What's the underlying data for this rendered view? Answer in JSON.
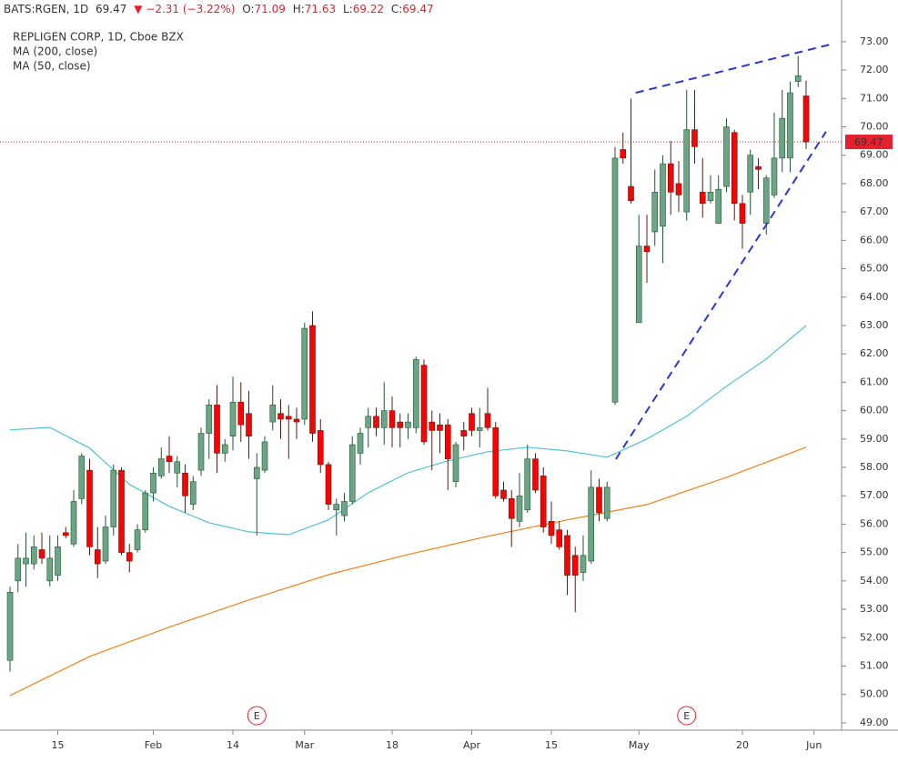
{
  "chart_data": {
    "type": "candlestick",
    "header": {
      "symbol": "BATS:RGEN, 1D",
      "last": "69.47",
      "change": "▼ −2.31 (−3.22%)",
      "ohlc": [
        {
          "label": "O:",
          "value": "71.09"
        },
        {
          "label": "H:",
          "value": "71.63"
        },
        {
          "label": "L:",
          "value": "69.22"
        },
        {
          "label": "C:",
          "value": "69.47"
        }
      ]
    },
    "title": "REPLIGEN CORP, 1D, Cboe BZX",
    "up_color": "#6ba583",
    "down_color": "#ff0000",
    "up_border": "#225437",
    "down_border": "#5b1a13",
    "open": [
      51.2,
      54.0,
      54.6,
      54.6,
      55.1,
      54.0,
      54.2,
      55.7,
      55.3,
      56.9,
      57.9,
      55.1,
      54.7,
      55.9,
      57.9,
      55.0,
      55.1,
      55.8,
      57.1,
      57.7,
      58.4,
      57.8,
      57.8,
      56.7,
      57.9,
      59.2,
      60.2,
      58.5,
      59.1,
      60.3,
      59.9,
      57.6,
      57.9,
      59.6,
      59.9,
      59.8,
      59.7,
      59.7,
      63.0,
      59.3,
      58.1,
      56.5,
      56.3,
      56.8,
      58.5,
      59.4,
      59.8,
      59.4,
      60.0,
      59.6,
      59.4,
      59.4,
      61.6,
      59.6,
      59.5,
      59.5,
      57.5,
      59.3,
      59.9,
      59.3,
      59.9,
      59.4,
      57.2,
      56.9,
      56.1,
      56.5,
      58.3,
      57.7,
      56.1,
      55.8,
      55.6,
      54.9,
      54.3,
      54.7,
      57.3,
      56.2,
      60.3,
      69.2,
      67.9,
      63.1,
      65.8,
      66.3,
      66.5,
      68.7,
      68.0,
      67.0,
      69.9,
      67.7,
      67.4,
      66.6,
      67.9,
      69.8,
      67.3,
      67.7,
      68.6,
      66.6,
      67.6,
      68.9,
      68.9,
      71.6,
      71.09
    ],
    "high": [
      53.8,
      55.3,
      55.7,
      55.6,
      55.7,
      55.6,
      55.6,
      55.9,
      57.2,
      58.5,
      58.3,
      55.9,
      56.3,
      58.1,
      58.0,
      55.3,
      56.0,
      57.2,
      58.0,
      58.7,
      59.1,
      58.4,
      58.1,
      57.7,
      59.4,
      60.4,
      60.9,
      59.0,
      61.2,
      61.0,
      60.7,
      58.5,
      59.1,
      60.9,
      60.4,
      60.2,
      60.1,
      63.1,
      63.5,
      59.7,
      58.2,
      56.9,
      57.1,
      59.1,
      59.4,
      60.1,
      60.1,
      61.0,
      60.5,
      59.9,
      59.9,
      61.9,
      61.8,
      60.0,
      59.9,
      59.7,
      58.9,
      59.6,
      60.1,
      60.1,
      60.8,
      59.6,
      57.5,
      57.2,
      57.8,
      58.8,
      58.5,
      58.0,
      56.8,
      56.1,
      55.8,
      55.2,
      55.6,
      57.9,
      57.6,
      57.5,
      69.3,
      69.8,
      71.0,
      66.9,
      66.9,
      68.5,
      69.0,
      69.5,
      68.8,
      71.3,
      71.3,
      68.9,
      68.3,
      68.3,
      70.3,
      69.9,
      67.6,
      69.2,
      68.9,
      68.3,
      70.5,
      71.3,
      71.6,
      72.5,
      71.63
    ],
    "low": [
      50.8,
      53.6,
      53.8,
      54.4,
      54.6,
      53.8,
      54.0,
      55.5,
      55.2,
      56.7,
      54.9,
      54.1,
      54.6,
      55.6,
      54.9,
      54.3,
      55.0,
      55.7,
      56.8,
      57.6,
      57.8,
      57.3,
      56.4,
      56.5,
      57.7,
      58.3,
      57.8,
      58.2,
      58.6,
      58.9,
      58.3,
      55.6,
      57.8,
      59.3,
      59.0,
      58.3,
      59.0,
      59.5,
      58.9,
      57.8,
      56.5,
      55.6,
      56.1,
      56.7,
      58.1,
      58.7,
      59.1,
      58.8,
      58.7,
      58.7,
      59.0,
      59.2,
      58.8,
      57.9,
      58.5,
      57.2,
      57.3,
      58.6,
      59.1,
      58.7,
      59.3,
      56.9,
      56.8,
      55.2,
      55.9,
      56.4,
      57.1,
      55.7,
      55.3,
      55.1,
      53.5,
      52.9,
      54.0,
      54.6,
      56.1,
      56.1,
      60.2,
      68.7,
      67.3,
      63.1,
      64.5,
      65.8,
      65.2,
      66.9,
      67.0,
      66.7,
      68.7,
      66.8,
      67.3,
      66.6,
      67.7,
      66.7,
      65.7,
      66.9,
      67.8,
      66.2,
      67.5,
      68.4,
      68.4,
      71.4,
      69.22
    ],
    "close": [
      53.6,
      54.8,
      54.8,
      55.2,
      54.8,
      54.8,
      55.2,
      55.6,
      56.8,
      58.4,
      55.2,
      54.6,
      55.9,
      57.9,
      55.0,
      54.7,
      55.8,
      57.1,
      57.8,
      58.3,
      58.2,
      58.2,
      57.0,
      57.5,
      59.2,
      60.2,
      58.5,
      58.8,
      60.3,
      59.5,
      59.1,
      58.0,
      58.9,
      60.2,
      59.7,
      59.7,
      59.6,
      62.9,
      59.2,
      58.1,
      56.7,
      56.7,
      56.8,
      58.8,
      59.2,
      59.8,
      59.4,
      60.0,
      59.4,
      59.4,
      59.6,
      61.8,
      58.9,
      59.3,
      59.3,
      58.3,
      58.8,
      59.1,
      59.3,
      59.4,
      59.4,
      57.0,
      56.9,
      56.2,
      57.0,
      58.3,
      57.2,
      55.9,
      55.6,
      55.2,
      54.2,
      54.2,
      54.9,
      57.3,
      56.4,
      57.3,
      68.9,
      68.9,
      67.4,
      65.8,
      65.6,
      67.7,
      68.7,
      67.7,
      67.6,
      69.9,
      69.3,
      67.3,
      67.7,
      67.8,
      70.0,
      67.3,
      66.6,
      69.0,
      68.5,
      68.2,
      68.9,
      70.3,
      71.2,
      71.8,
      69.47
    ],
    "series": [
      {
        "name": "MA (200, close)",
        "color": "#f57f17",
        "x": [
          0,
          10,
          20,
          30,
          40,
          50,
          60,
          70,
          80,
          90,
          100
        ],
        "values": [
          49.96,
          51.34,
          52.37,
          53.33,
          54.22,
          54.93,
          55.57,
          56.15,
          56.69,
          57.65,
          58.71
        ]
      },
      {
        "name": "MA (50, close)",
        "color": "#4fc3d9",
        "x": [
          0,
          5,
          10,
          15,
          20,
          25,
          30,
          35,
          40,
          45,
          50,
          55,
          60,
          65,
          70,
          75,
          80,
          85,
          90,
          95,
          100
        ],
        "values": [
          59.32,
          59.41,
          58.68,
          57.4,
          56.63,
          56.05,
          55.73,
          55.63,
          56.15,
          57.11,
          57.81,
          58.23,
          58.55,
          58.71,
          58.58,
          58.36,
          59.0,
          59.8,
          60.86,
          61.82,
          63.0
        ]
      }
    ],
    "trendlines": [
      {
        "color": "#2936d6",
        "x": [
          78.6,
          103
        ],
        "y": [
          71.2,
          72.9
        ]
      },
      {
        "color": "#2936d6",
        "x": [
          76.1,
          102.5
        ],
        "y": [
          58.29,
          69.83
        ]
      }
    ],
    "events": [
      {
        "x": 31,
        "label": "E"
      },
      {
        "x": 85,
        "label": "E"
      }
    ],
    "last_price": 69.47,
    "last_color": "#e5212d",
    "xlim": [
      -1.26,
      104.46
    ],
    "xticks": [
      {
        "value": 6,
        "label": "15"
      },
      {
        "value": 18,
        "label": "Feb"
      },
      {
        "value": 28,
        "label": "14"
      },
      {
        "value": 37,
        "label": "Mar"
      },
      {
        "value": 48,
        "label": "18"
      },
      {
        "value": 58,
        "label": "Apr"
      },
      {
        "value": 68,
        "label": "15"
      },
      {
        "value": 79,
        "label": "May"
      },
      {
        "value": 92,
        "label": "20"
      },
      {
        "value": 101,
        "label": "Jun"
      }
    ],
    "ylim": [
      48.74,
      74.47
    ],
    "yticks": [
      {
        "value": 49,
        "label": "49.00"
      },
      {
        "value": 50,
        "label": "50.00"
      },
      {
        "value": 51,
        "label": "51.00"
      },
      {
        "value": 52,
        "label": "52.00"
      },
      {
        "value": 53,
        "label": "53.00"
      },
      {
        "value": 54,
        "label": "54.00"
      },
      {
        "value": 55,
        "label": "55.00"
      },
      {
        "value": 56,
        "label": "56.00"
      },
      {
        "value": 57,
        "label": "57.00"
      },
      {
        "value": 58,
        "label": "58.00"
      },
      {
        "value": 59,
        "label": "59.00"
      },
      {
        "value": 60,
        "label": "60.00"
      },
      {
        "value": 61,
        "label": "61.00"
      },
      {
        "value": 62,
        "label": "62.00"
      },
      {
        "value": 63,
        "label": "63.00"
      },
      {
        "value": 64,
        "label": "64.00"
      },
      {
        "value": 65,
        "label": "65.00"
      },
      {
        "value": 66,
        "label": "66.00"
      },
      {
        "value": 67,
        "label": "67.00"
      },
      {
        "value": 68,
        "label": "68.00"
      },
      {
        "value": 69,
        "label": "69.00"
      },
      {
        "value": 70,
        "label": "70.00"
      },
      {
        "value": 71,
        "label": "71.00"
      },
      {
        "value": 72,
        "label": "72.00"
      },
      {
        "value": 73,
        "label": "73.00"
      }
    ],
    "grid": false
  }
}
